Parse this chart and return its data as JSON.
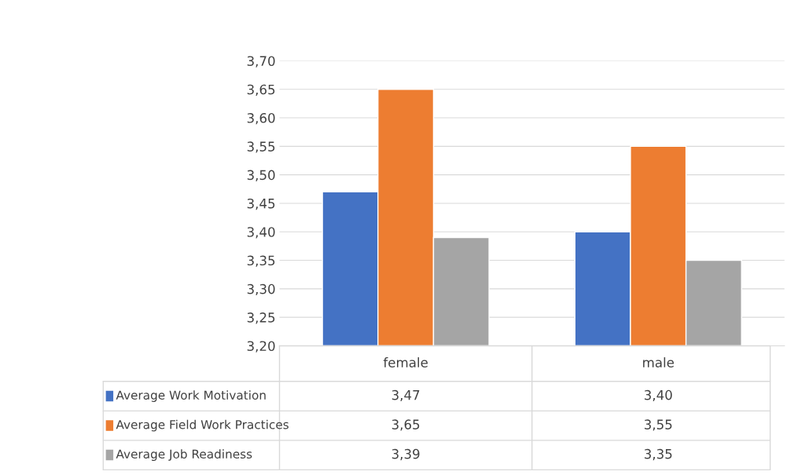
{
  "chart_data": {
    "type": "bar",
    "categories": [
      "female",
      "male"
    ],
    "series": [
      {
        "name": "Average Work Motivation",
        "color": "#4472c4",
        "values": [
          3.47,
          3.4
        ],
        "value_labels": [
          "3,47",
          "3,40"
        ]
      },
      {
        "name": "Average Field Work Practices",
        "color": "#ed7d31",
        "values": [
          3.65,
          3.55
        ],
        "value_labels": [
          "3,65",
          "3,55"
        ]
      },
      {
        "name": "Average Job Readiness",
        "color": "#a5a5a5",
        "values": [
          3.39,
          3.35
        ],
        "value_labels": [
          "3,39",
          "3,35"
        ]
      }
    ],
    "ylim": [
      3.2,
      3.7
    ],
    "yticks": [
      {
        "value": 3.2,
        "label": "3,20"
      },
      {
        "value": 3.25,
        "label": "3,25"
      },
      {
        "value": 3.3,
        "label": "3,30"
      },
      {
        "value": 3.35,
        "label": "3,35"
      },
      {
        "value": 3.4,
        "label": "3,40"
      },
      {
        "value": 3.45,
        "label": "3,45"
      },
      {
        "value": 3.5,
        "label": "3,50"
      },
      {
        "value": 3.55,
        "label": "3,55"
      },
      {
        "value": 3.6,
        "label": "3,60"
      },
      {
        "value": 3.65,
        "label": "3,65"
      },
      {
        "value": 3.7,
        "label": "3,70"
      }
    ],
    "grid": "y",
    "legend": "bottom left"
  }
}
